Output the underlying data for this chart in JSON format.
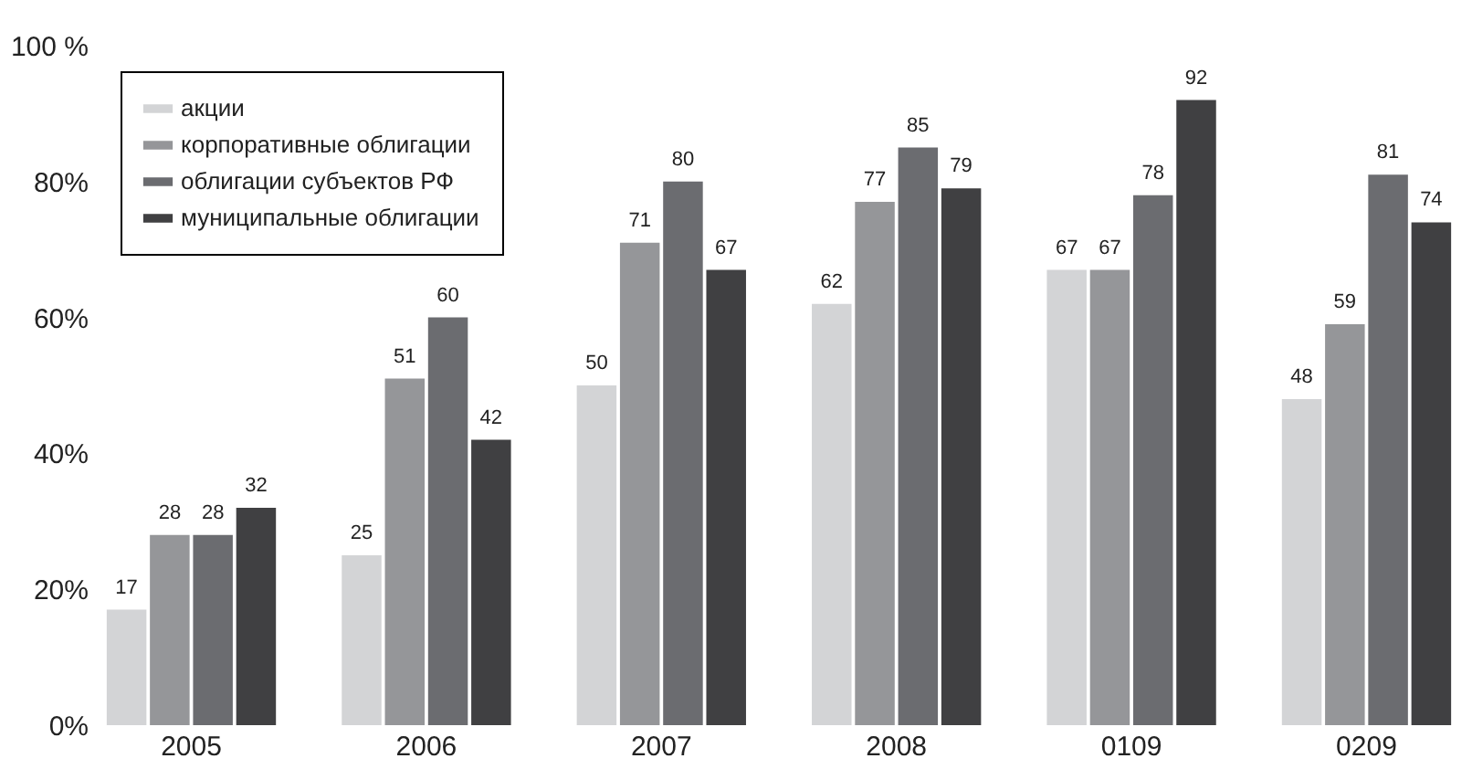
{
  "chart_data": {
    "type": "bar",
    "categories": [
      "2005",
      "2006",
      "2007",
      "2008",
      "0109",
      "0209"
    ],
    "series": [
      {
        "name": "акции",
        "color": "#d3d4d6",
        "values": [
          17,
          25,
          50,
          62,
          67,
          48
        ]
      },
      {
        "name": "корпоративные облигации",
        "color": "#959699",
        "values": [
          28,
          51,
          71,
          77,
          67,
          59
        ]
      },
      {
        "name": "облигации субъектов РФ",
        "color": "#6b6c70",
        "values": [
          28,
          60,
          80,
          85,
          78,
          81
        ]
      },
      {
        "name": "муниципальные облигации",
        "color": "#404042",
        "values": [
          32,
          42,
          67,
          79,
          92,
          74
        ]
      }
    ],
    "ylim": [
      0,
      100
    ],
    "yticks": [
      {
        "value": 0,
        "label": "0%"
      },
      {
        "value": 20,
        "label": "20%"
      },
      {
        "value": 40,
        "label": "40%"
      },
      {
        "value": 60,
        "label": "60%"
      },
      {
        "value": 80,
        "label": "80%"
      },
      {
        "value": 100,
        "label": "100 %"
      }
    ],
    "grid": false,
    "legend": "top left",
    "data_labels": true
  }
}
